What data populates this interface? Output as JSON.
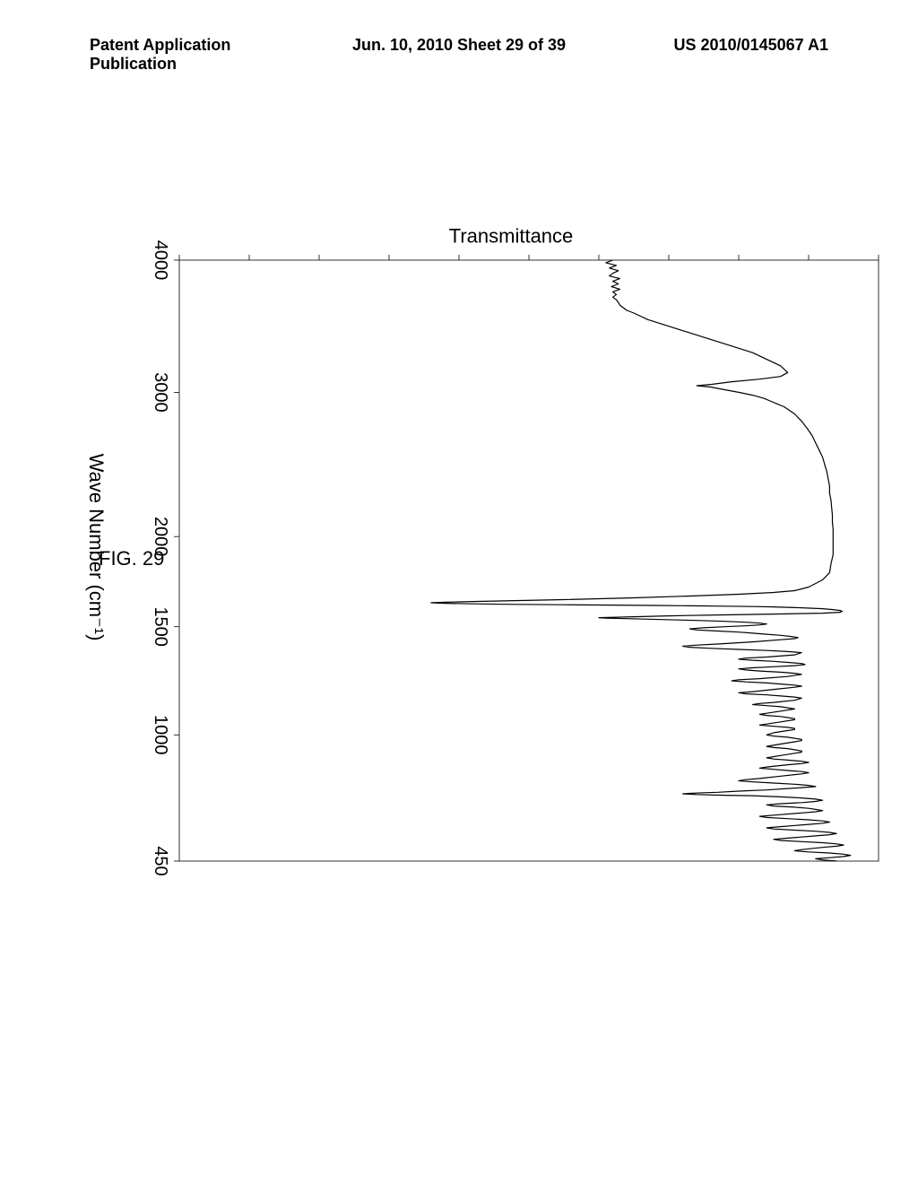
{
  "header": {
    "left": "Patent Application Publication",
    "mid": "Jun. 10, 2010  Sheet 29 of 39",
    "right": "US 2010/0145067 A1"
  },
  "figure_label": "FIG. 29",
  "chart": {
    "type": "line",
    "xlabel": "Wave Number (cm⁻¹)",
    "ylabel": "Transmittance",
    "x_domain": [
      4000,
      450
    ],
    "x_ticks": [
      4000,
      3000,
      2000,
      1500,
      1000,
      450
    ],
    "y_domain": [
      0,
      100
    ],
    "y_ticks_count": 10,
    "line_color": "#000000",
    "line_width": 1.2,
    "background_color": "#ffffff",
    "frame_color": "#000000",
    "frame_width": 0.8,
    "tick_length": 6,
    "label_fontsize": 22,
    "tick_fontsize": 20,
    "data": [
      [
        4000,
        62
      ],
      [
        3980,
        61
      ],
      [
        3960,
        62.5
      ],
      [
        3940,
        61.5
      ],
      [
        3920,
        62.8
      ],
      [
        3900,
        62
      ],
      [
        3880,
        61.5
      ],
      [
        3860,
        63
      ],
      [
        3840,
        62
      ],
      [
        3820,
        62.8
      ],
      [
        3800,
        61.8
      ],
      [
        3780,
        63
      ],
      [
        3760,
        62
      ],
      [
        3740,
        62.5
      ],
      [
        3720,
        62
      ],
      [
        3700,
        62.5
      ],
      [
        3680,
        62.8
      ],
      [
        3660,
        63
      ],
      [
        3640,
        63.5
      ],
      [
        3620,
        64
      ],
      [
        3600,
        65
      ],
      [
        3550,
        67
      ],
      [
        3500,
        70
      ],
      [
        3450,
        73
      ],
      [
        3400,
        76
      ],
      [
        3350,
        79
      ],
      [
        3300,
        82
      ],
      [
        3250,
        84
      ],
      [
        3200,
        86
      ],
      [
        3150,
        87
      ],
      [
        3120,
        86
      ],
      [
        3100,
        83
      ],
      [
        3080,
        79
      ],
      [
        3060,
        76
      ],
      [
        3050,
        74
      ],
      [
        3040,
        76
      ],
      [
        3020,
        78
      ],
      [
        3000,
        80
      ],
      [
        2980,
        82
      ],
      [
        2960,
        83.5
      ],
      [
        2940,
        84.5
      ],
      [
        2920,
        85.5
      ],
      [
        2900,
        86.5
      ],
      [
        2850,
        88
      ],
      [
        2800,
        89
      ],
      [
        2750,
        89.8
      ],
      [
        2700,
        90.5
      ],
      [
        2650,
        91
      ],
      [
        2600,
        91.5
      ],
      [
        2550,
        92
      ],
      [
        2500,
        92.3
      ],
      [
        2450,
        92.6
      ],
      [
        2400,
        92.8
      ],
      [
        2350,
        93
      ],
      [
        2300,
        93
      ],
      [
        2250,
        93.2
      ],
      [
        2200,
        93.3
      ],
      [
        2150,
        93.4
      ],
      [
        2100,
        93.4
      ],
      [
        2050,
        93.5
      ],
      [
        2000,
        93.5
      ],
      [
        1950,
        93.5
      ],
      [
        1900,
        93.5
      ],
      [
        1850,
        93.2
      ],
      [
        1800,
        93
      ],
      [
        1780,
        92.5
      ],
      [
        1760,
        92
      ],
      [
        1740,
        91
      ],
      [
        1720,
        90
      ],
      [
        1700,
        88
      ],
      [
        1690,
        85
      ],
      [
        1680,
        80
      ],
      [
        1670,
        73
      ],
      [
        1660,
        65
      ],
      [
        1650,
        55
      ],
      [
        1645,
        48
      ],
      [
        1640,
        42
      ],
      [
        1636,
        38
      ],
      [
        1633,
        36
      ],
      [
        1630,
        38
      ],
      [
        1627,
        42
      ],
      [
        1624,
        48
      ],
      [
        1622,
        55
      ],
      [
        1620,
        62
      ],
      [
        1618,
        68
      ],
      [
        1616,
        73
      ],
      [
        1614,
        78
      ],
      [
        1612,
        82
      ],
      [
        1610,
        85
      ],
      [
        1605,
        89
      ],
      [
        1600,
        92
      ],
      [
        1595,
        93.5
      ],
      [
        1590,
        94.5
      ],
      [
        1585,
        94.8
      ],
      [
        1580,
        94.5
      ],
      [
        1575,
        92
      ],
      [
        1570,
        85
      ],
      [
        1565,
        77
      ],
      [
        1560,
        70
      ],
      [
        1555,
        65
      ],
      [
        1552,
        62
      ],
      [
        1550,
        60
      ],
      [
        1548,
        61
      ],
      [
        1545,
        64
      ],
      [
        1540,
        69
      ],
      [
        1535,
        74
      ],
      [
        1530,
        78
      ],
      [
        1525,
        81
      ],
      [
        1520,
        83
      ],
      [
        1515,
        84
      ],
      [
        1510,
        83
      ],
      [
        1505,
        81
      ],
      [
        1500,
        78
      ],
      [
        1495,
        75
      ],
      [
        1490,
        73
      ],
      [
        1485,
        74
      ],
      [
        1480,
        77
      ],
      [
        1475,
        80
      ],
      [
        1470,
        82
      ],
      [
        1465,
        84
      ],
      [
        1460,
        86
      ],
      [
        1455,
        87.5
      ],
      [
        1450,
        88.5
      ],
      [
        1445,
        88
      ],
      [
        1440,
        86
      ],
      [
        1430,
        82
      ],
      [
        1420,
        77
      ],
      [
        1415,
        74
      ],
      [
        1410,
        72
      ],
      [
        1405,
        73
      ],
      [
        1400,
        76
      ],
      [
        1395,
        80
      ],
      [
        1390,
        84
      ],
      [
        1385,
        87
      ],
      [
        1380,
        89
      ],
      [
        1370,
        88
      ],
      [
        1360,
        84
      ],
      [
        1355,
        81
      ],
      [
        1350,
        80
      ],
      [
        1345,
        82
      ],
      [
        1340,
        85
      ],
      [
        1335,
        87
      ],
      [
        1330,
        89
      ],
      [
        1325,
        89.5
      ],
      [
        1320,
        88
      ],
      [
        1315,
        85
      ],
      [
        1310,
        82
      ],
      [
        1305,
        80
      ],
      [
        1300,
        81
      ],
      [
        1295,
        83
      ],
      [
        1290,
        86
      ],
      [
        1285,
        88
      ],
      [
        1280,
        89
      ],
      [
        1270,
        87
      ],
      [
        1260,
        83
      ],
      [
        1255,
        80
      ],
      [
        1250,
        79
      ],
      [
        1245,
        81
      ],
      [
        1240,
        84
      ],
      [
        1235,
        86
      ],
      [
        1230,
        88
      ],
      [
        1225,
        89
      ],
      [
        1220,
        88
      ],
      [
        1210,
        85
      ],
      [
        1200,
        82
      ],
      [
        1195,
        80
      ],
      [
        1190,
        81
      ],
      [
        1185,
        84
      ],
      [
        1180,
        86
      ],
      [
        1175,
        88
      ],
      [
        1170,
        89
      ],
      [
        1160,
        88
      ],
      [
        1150,
        85
      ],
      [
        1145,
        83
      ],
      [
        1140,
        82
      ],
      [
        1135,
        84
      ],
      [
        1130,
        86
      ],
      [
        1125,
        87
      ],
      [
        1120,
        88
      ],
      [
        1110,
        86
      ],
      [
        1100,
        84
      ],
      [
        1095,
        83
      ],
      [
        1090,
        84
      ],
      [
        1085,
        86
      ],
      [
        1080,
        87
      ],
      [
        1075,
        88
      ],
      [
        1070,
        88
      ],
      [
        1060,
        86
      ],
      [
        1050,
        84
      ],
      [
        1045,
        83
      ],
      [
        1040,
        85
      ],
      [
        1035,
        87
      ],
      [
        1030,
        88
      ],
      [
        1025,
        88
      ],
      [
        1020,
        87
      ],
      [
        1010,
        85
      ],
      [
        1000,
        84
      ],
      [
        995,
        85
      ],
      [
        990,
        87
      ],
      [
        985,
        88
      ],
      [
        980,
        89
      ],
      [
        975,
        89
      ],
      [
        970,
        88
      ],
      [
        960,
        86
      ],
      [
        950,
        84
      ],
      [
        945,
        85
      ],
      [
        940,
        87
      ],
      [
        935,
        88
      ],
      [
        930,
        89
      ],
      [
        925,
        89
      ],
      [
        920,
        88
      ],
      [
        910,
        86
      ],
      [
        900,
        84
      ],
      [
        895,
        85
      ],
      [
        890,
        87
      ],
      [
        885,
        89
      ],
      [
        880,
        90
      ],
      [
        875,
        89
      ],
      [
        870,
        87
      ],
      [
        860,
        84
      ],
      [
        855,
        83
      ],
      [
        850,
        85
      ],
      [
        845,
        87
      ],
      [
        840,
        89
      ],
      [
        835,
        90
      ],
      [
        830,
        89
      ],
      [
        820,
        86
      ],
      [
        810,
        83
      ],
      [
        805,
        81
      ],
      [
        800,
        80
      ],
      [
        795,
        82
      ],
      [
        790,
        85
      ],
      [
        785,
        88
      ],
      [
        780,
        90
      ],
      [
        775,
        91
      ],
      [
        770,
        89
      ],
      [
        760,
        84
      ],
      [
        755,
        80
      ],
      [
        750,
        77
      ],
      [
        748,
        75
      ],
      [
        745,
        73
      ],
      [
        743,
        72
      ],
      [
        740,
        74
      ],
      [
        737,
        78
      ],
      [
        735,
        82
      ],
      [
        730,
        86
      ],
      [
        725,
        89
      ],
      [
        720,
        91
      ],
      [
        715,
        92
      ],
      [
        710,
        91
      ],
      [
        705,
        89
      ],
      [
        700,
        86
      ],
      [
        695,
        84
      ],
      [
        690,
        85
      ],
      [
        685,
        88
      ],
      [
        680,
        90
      ],
      [
        675,
        91
      ],
      [
        670,
        92
      ],
      [
        665,
        91
      ],
      [
        660,
        89
      ],
      [
        650,
        85
      ],
      [
        645,
        83
      ],
      [
        640,
        84
      ],
      [
        635,
        87
      ],
      [
        630,
        90
      ],
      [
        625,
        92
      ],
      [
        620,
        93
      ],
      [
        615,
        92
      ],
      [
        610,
        90
      ],
      [
        600,
        86
      ],
      [
        595,
        84
      ],
      [
        590,
        85
      ],
      [
        585,
        88
      ],
      [
        580,
        91
      ],
      [
        575,
        93
      ],
      [
        570,
        94
      ],
      [
        565,
        93
      ],
      [
        560,
        91
      ],
      [
        550,
        87
      ],
      [
        545,
        85
      ],
      [
        540,
        86
      ],
      [
        535,
        89
      ],
      [
        530,
        92
      ],
      [
        525,
        94
      ],
      [
        520,
        95
      ],
      [
        515,
        94
      ],
      [
        510,
        92
      ],
      [
        500,
        89
      ],
      [
        495,
        88
      ],
      [
        490,
        90
      ],
      [
        485,
        93
      ],
      [
        480,
        95
      ],
      [
        475,
        96
      ],
      [
        470,
        95
      ],
      [
        465,
        93
      ],
      [
        460,
        91
      ],
      [
        455,
        92
      ],
      [
        450,
        94
      ]
    ]
  }
}
